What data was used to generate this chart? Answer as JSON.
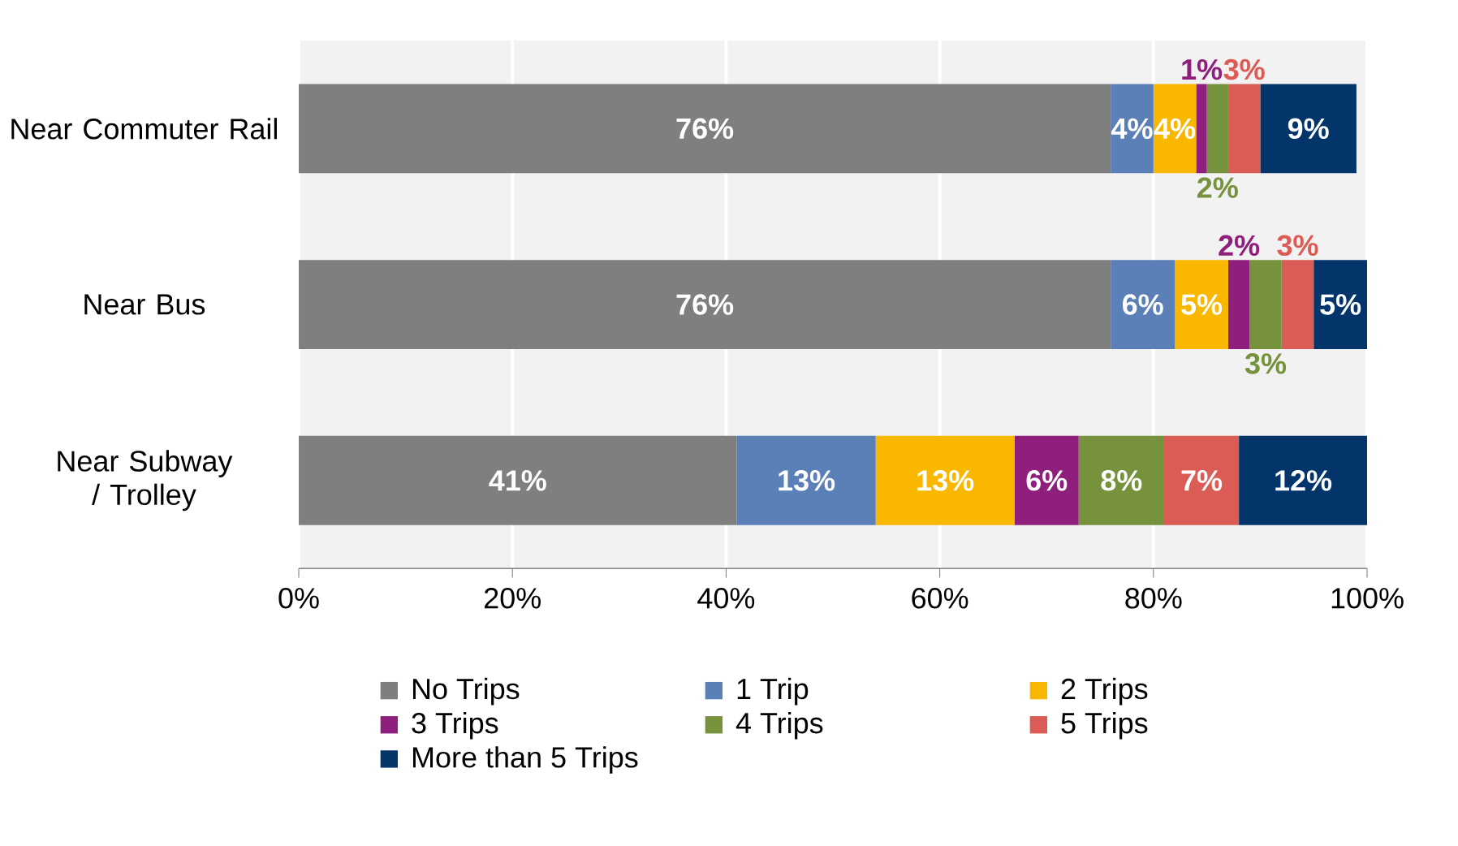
{
  "chart_data": {
    "type": "bar",
    "orientation": "horizontal",
    "stacked": true,
    "grid": "x",
    "legend": "bottom",
    "categories": [
      "Near Commuter Rail",
      "Near Bus",
      "Near Subway / Trolley"
    ],
    "series": [
      {
        "name": "No Trips",
        "color": "#7f7f7f",
        "values": [
          76,
          76,
          41
        ],
        "value_labels": [
          "76%",
          "76%",
          "41%"
        ]
      },
      {
        "name": "1 Trip",
        "color": "#5b80b8",
        "values": [
          4,
          6,
          13
        ],
        "value_labels": [
          "4%",
          "6%",
          "13%"
        ]
      },
      {
        "name": "2 Trips",
        "color": "#f9b700",
        "values": [
          4,
          5,
          13
        ],
        "value_labels": [
          "4%",
          "5%",
          "13%"
        ]
      },
      {
        "name": "3 Trips",
        "color": "#8e1f7c",
        "values": [
          1,
          2,
          6
        ],
        "value_labels": [
          "1%",
          "2%",
          "6%"
        ]
      },
      {
        "name": "4 Trips",
        "color": "#76923c",
        "values": [
          2,
          3,
          8
        ],
        "value_labels": [
          "2%",
          "3%",
          "8%"
        ]
      },
      {
        "name": "5 Trips",
        "color": "#db5b55",
        "values": [
          3,
          3,
          7
        ],
        "value_labels": [
          "3%",
          "3%",
          "7%"
        ]
      },
      {
        "name": "More than 5 Trips",
        "color": "#03356b",
        "values": [
          9,
          5,
          12
        ],
        "value_labels": [
          "9%",
          "5%",
          "12%"
        ]
      }
    ],
    "xlim": [
      0,
      100
    ],
    "xticks": [
      {
        "value": 0,
        "label": "0%"
      },
      {
        "value": 20,
        "label": "20%"
      },
      {
        "value": 40,
        "label": "40%"
      },
      {
        "value": 60,
        "label": "60%"
      },
      {
        "value": 80,
        "label": "80%"
      },
      {
        "value": 100,
        "label": "100%"
      }
    ]
  }
}
